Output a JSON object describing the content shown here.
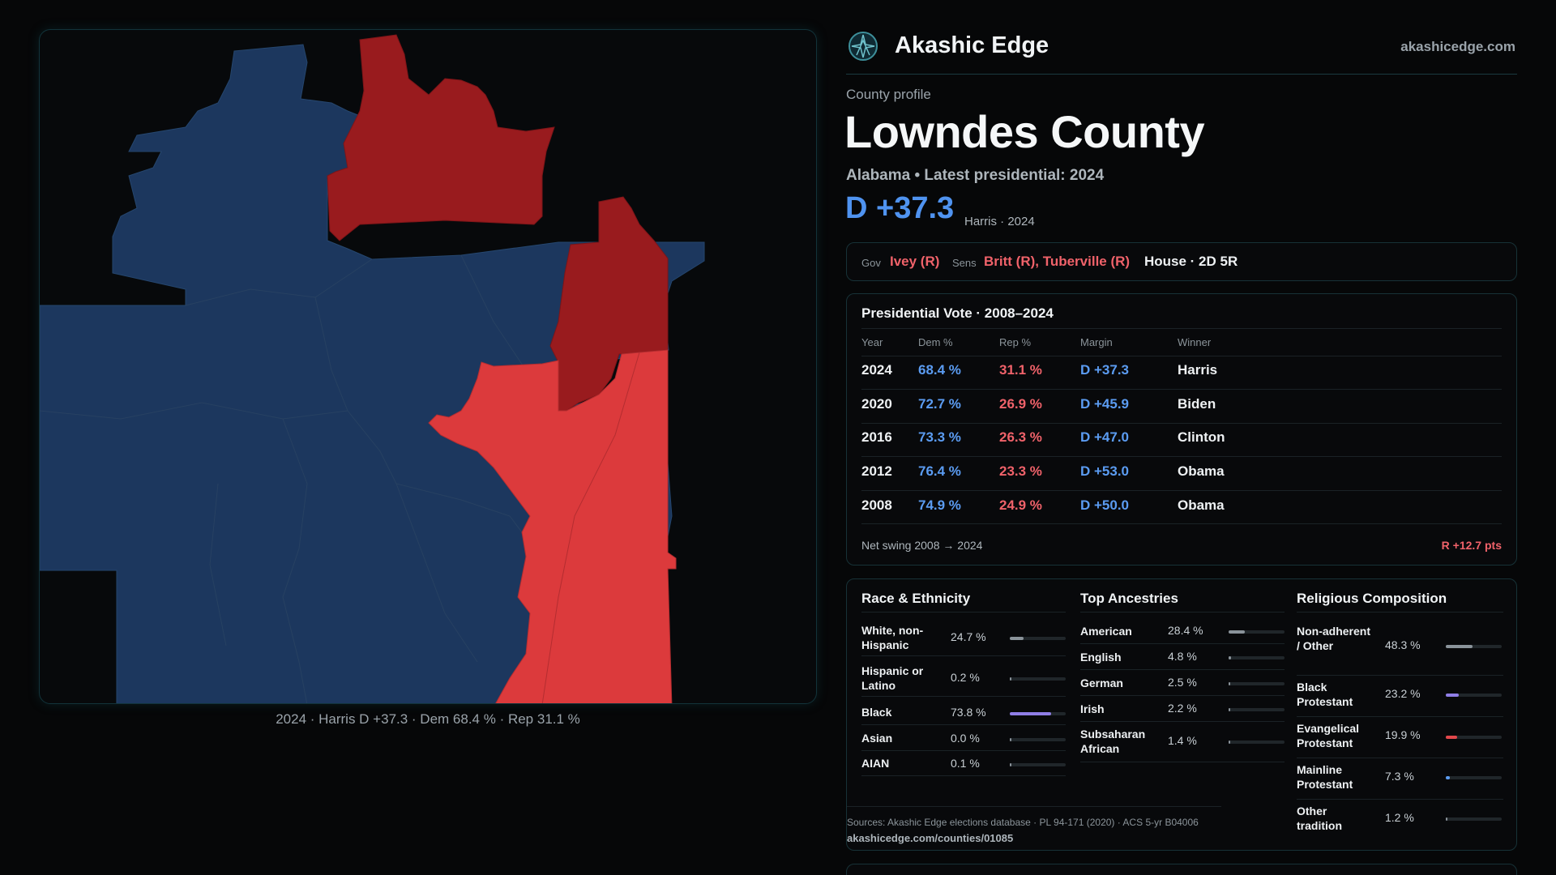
{
  "map": {
    "caption": "2024 · Harris D +37.3 · Dem 68.4 % · Rep 31.1 %",
    "colors": {
      "dem_strong": "#1c375e",
      "rep_strong": "#991b1e",
      "rep_lean": "#dc3a3c",
      "border": "#2a4463",
      "background": "#07090b"
    }
  },
  "header": {
    "brand": "Akashic Edge",
    "site": "akashicedge.com",
    "logo_icon": "compass-star-icon"
  },
  "profile": {
    "eyebrow": "County profile",
    "county": "Lowndes County",
    "subline": "Alabama • Latest presidential: 2024",
    "margin": "D +37.3",
    "margin_sub": "Harris · 2024"
  },
  "officials": {
    "gov_label": "Gov",
    "gov_value": "Ivey (R)",
    "sens_label": "Sens",
    "sens_value": "Britt (R), Tuberville (R)",
    "house": "House · 2D 5R"
  },
  "presidential": {
    "title": "Presidential Vote · 2008–2024",
    "headers": [
      "Year",
      "Dem %",
      "Rep %",
      "Margin",
      "Winner"
    ],
    "rows": [
      {
        "year": "2024",
        "dem": "68.4 %",
        "rep": "31.1 %",
        "margin": "D +37.3",
        "winner": "Harris"
      },
      {
        "year": "2020",
        "dem": "72.7 %",
        "rep": "26.9 %",
        "margin": "D +45.9",
        "winner": "Biden"
      },
      {
        "year": "2016",
        "dem": "73.3 %",
        "rep": "26.3 %",
        "margin": "D +47.0",
        "winner": "Clinton"
      },
      {
        "year": "2012",
        "dem": "76.4 %",
        "rep": "23.3 %",
        "margin": "D +53.0",
        "winner": "Obama"
      },
      {
        "year": "2008",
        "dem": "74.9 %",
        "rep": "24.9 %",
        "margin": "D +50.0",
        "winner": "Obama"
      }
    ],
    "swing_label": "Net swing 2008 → 2024",
    "swing_value": "R +12.7 pts"
  },
  "race": {
    "title": "Race & Ethnicity",
    "items": [
      {
        "label": "White, non-Hispanic",
        "value": "24.7 %",
        "pct": 24.7,
        "color": "#8a939a"
      },
      {
        "label": "Hispanic or Latino",
        "value": "0.2 %",
        "pct": 0.2,
        "color": "#8a939a"
      },
      {
        "label": "Black",
        "value": "73.8 %",
        "pct": 73.8,
        "color": "#8f7ee6"
      },
      {
        "label": "Asian",
        "value": "0.0 %",
        "pct": 0.0,
        "color": "#8a939a"
      },
      {
        "label": "AIAN",
        "value": "0.1 %",
        "pct": 0.1,
        "color": "#8a939a"
      }
    ]
  },
  "ancestry": {
    "title": "Top Ancestries",
    "items": [
      {
        "label": "American",
        "value": "28.4 %",
        "pct": 28.4,
        "color": "#8a939a"
      },
      {
        "label": "English",
        "value": "4.8 %",
        "pct": 4.8,
        "color": "#8a939a"
      },
      {
        "label": "German",
        "value": "2.5 %",
        "pct": 2.5,
        "color": "#8a939a"
      },
      {
        "label": "Irish",
        "value": "2.2 %",
        "pct": 2.2,
        "color": "#8a939a"
      },
      {
        "label": "Subsaharan African",
        "value": "1.4 %",
        "pct": 1.4,
        "color": "#8a939a"
      }
    ]
  },
  "religion": {
    "title": "Religious Composition",
    "items": [
      {
        "label": "Non-adherent / Other",
        "value": "48.3 %",
        "pct": 48.3,
        "color": "#8a939a"
      },
      {
        "label": "Black Protestant",
        "value": "23.2 %",
        "pct": 23.2,
        "color": "#8f7ee6"
      },
      {
        "label": "Evangelical Protestant",
        "value": "19.9 %",
        "pct": 19.9,
        "color": "#e2474b"
      },
      {
        "label": "Mainline Protestant",
        "value": "7.3 %",
        "pct": 7.3,
        "color": "#5b9cf2"
      },
      {
        "label": "Other tradition",
        "value": "1.2 %",
        "pct": 1.2,
        "color": "#8a939a"
      }
    ]
  },
  "sources": {
    "text": "Sources: Akashic Edge elections database · PL 94-171 (2020) · ACS 5-yr B04006",
    "url": "akashicedge.com/counties/01085"
  }
}
